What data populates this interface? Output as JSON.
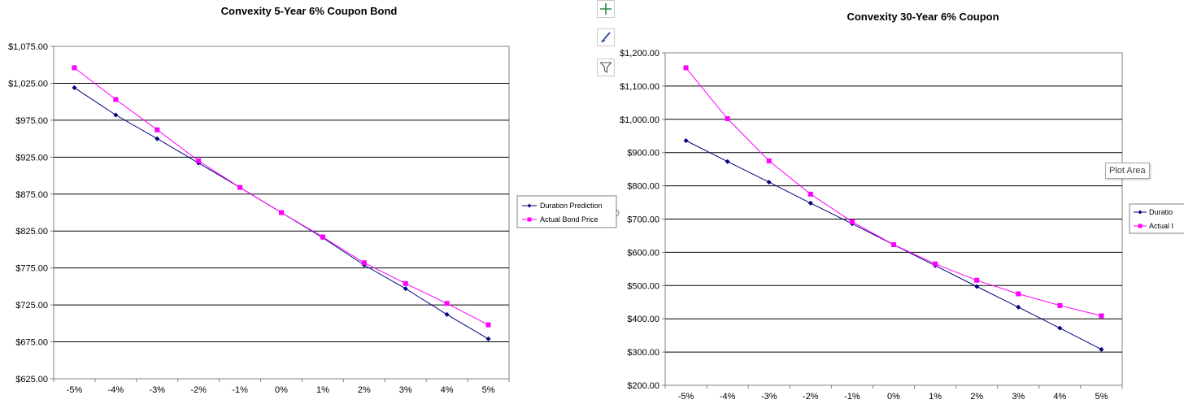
{
  "charts": [
    {
      "type": "line",
      "title": "Convexity 5-Year 6% Coupon Bond",
      "categories": [
        "-5%",
        "-4%",
        "-3%",
        "-2%",
        "-1%",
        "0%",
        "1%",
        "2%",
        "3%",
        "4%",
        "5%"
      ],
      "y_ticks": [
        "$1,075.00",
        "$1,025.00",
        "$975.00",
        "$925.00",
        "$875.00",
        "$825.00",
        "$775.00",
        "$725.00",
        "$675.00",
        "$625.00"
      ],
      "ylim": [
        625,
        1075
      ],
      "grid": true,
      "legend_position": "right",
      "series": [
        {
          "name": "Duration Prediction",
          "color": "#000080",
          "marker": "diamond",
          "values": [
            1019,
            982,
            950,
            917,
            884,
            850,
            816,
            779,
            747,
            712,
            679
          ]
        },
        {
          "name": "Actual Bond Price",
          "color": "#ff00ff",
          "marker": "square",
          "values": [
            1046,
            1003,
            962,
            920,
            884,
            850,
            817,
            782,
            754,
            727,
            698
          ]
        }
      ]
    },
    {
      "type": "line",
      "title": "Convexity 30-Year 6% Coupon",
      "categories": [
        "-5%",
        "-4%",
        "-3%",
        "-2%",
        "-1%",
        "0%",
        "1%",
        "2%",
        "3%",
        "4%",
        "5%"
      ],
      "y_ticks": [
        "$1,200.00",
        "$1,100.00",
        "$1,000.00",
        "$900.00",
        "$800.00",
        "$700.00",
        "$600.00",
        "$500.00",
        "$400.00",
        "$300.00",
        "$200.00"
      ],
      "ylim": [
        200,
        1200
      ],
      "grid": true,
      "legend_position": "right",
      "series": [
        {
          "name": "Duration Prediction",
          "legend_text": "Duratio",
          "color": "#000080",
          "marker": "diamond",
          "values": [
            936,
            873,
            811,
            748,
            686,
            623,
            560,
            497,
            435,
            372,
            308
          ]
        },
        {
          "name": "Actual Bond Price",
          "legend_text": "Actual I",
          "color": "#ff00ff",
          "marker": "square",
          "values": [
            1155,
            1002,
            875,
            775,
            692,
            623,
            565,
            516,
            475,
            440,
            409
          ]
        }
      ]
    }
  ],
  "toolbar": [
    {
      "icon": "plus-icon",
      "color": "#2e8b3e"
    },
    {
      "icon": "brush-icon",
      "color": "#2f5597"
    },
    {
      "icon": "filter-icon",
      "color": "#555555"
    }
  ],
  "tooltip": {
    "text": "Plot Area"
  }
}
